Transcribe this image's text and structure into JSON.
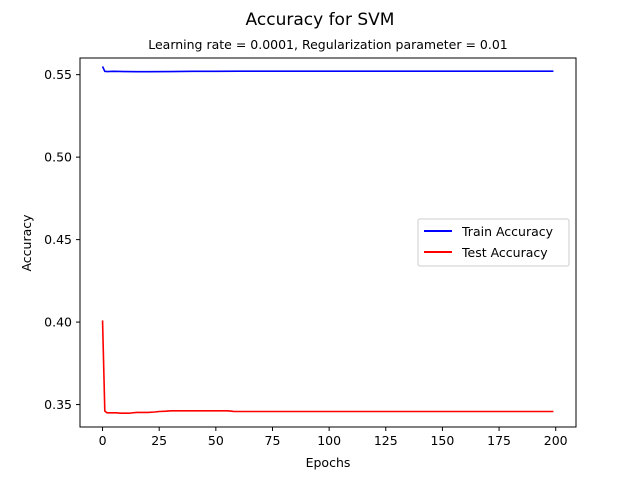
{
  "chart_data": {
    "type": "line",
    "title": "Accuracy for SVM",
    "subtitle": "Learning rate = 0.0001, Regularization parameter = 0.01",
    "xlabel": "Epochs",
    "ylabel": "Accuracy",
    "xlim": [
      -9.95,
      208.95
    ],
    "ylim": [
      0.3364,
      0.5601
    ],
    "xticks": [
      0,
      25,
      50,
      75,
      100,
      125,
      150,
      175,
      200
    ],
    "yticks": [
      0.35,
      0.4,
      0.45,
      0.5,
      0.55
    ],
    "ytick_labels": [
      "0.35",
      "0.40",
      "0.45",
      "0.50",
      "0.55"
    ],
    "grid": false,
    "legend_position": "center-right",
    "series": [
      {
        "name": "Train Accuracy",
        "color": "#0000ff",
        "x": [
          0,
          1,
          2,
          5,
          10,
          15,
          20,
          30,
          40,
          50,
          60,
          70,
          80,
          100,
          120,
          140,
          160,
          180,
          199
        ],
        "y": [
          0.555,
          0.552,
          0.5519,
          0.552,
          0.5519,
          0.5518,
          0.5518,
          0.5519,
          0.552,
          0.552,
          0.5521,
          0.5521,
          0.5521,
          0.5521,
          0.5521,
          0.5521,
          0.5521,
          0.5521,
          0.5521
        ]
      },
      {
        "name": "Test Accuracy",
        "color": "#ff0000",
        "x": [
          0,
          1,
          2,
          4,
          6,
          8,
          10,
          12,
          15,
          18,
          20,
          23,
          25,
          28,
          30,
          35,
          40,
          50,
          55,
          57,
          58,
          65,
          80,
          100,
          120,
          150,
          180,
          199
        ],
        "y": [
          0.401,
          0.346,
          0.345,
          0.345,
          0.345,
          0.3448,
          0.3448,
          0.3448,
          0.3452,
          0.3452,
          0.3452,
          0.3455,
          0.3458,
          0.346,
          0.3462,
          0.3462,
          0.3462,
          0.3462,
          0.3462,
          0.346,
          0.3458,
          0.3458,
          0.3458,
          0.3458,
          0.3458,
          0.3458,
          0.3458,
          0.3458
        ]
      }
    ]
  }
}
